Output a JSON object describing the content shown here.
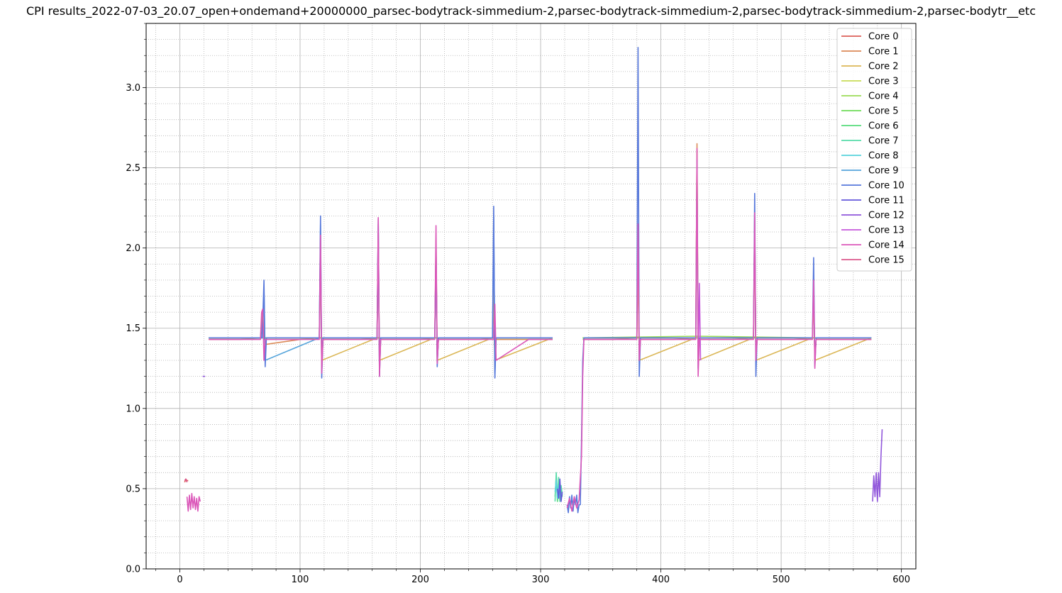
{
  "chart_data": {
    "type": "line",
    "title": "CPI results_2022-07-03_20.07_open+ondemand+20000000_parsec-bodytrack-simmedium-2,parsec-bodytrack-simmedium-2,parsec-bodytrack-simmedium-2,parsec-bodytr__etc",
    "xlabel": "",
    "ylabel": "",
    "xlim": [
      -28,
      612
    ],
    "ylim": [
      0.0,
      3.4
    ],
    "xticks": [
      0,
      100,
      200,
      300,
      400,
      500,
      600
    ],
    "yticks": [
      0.0,
      0.5,
      1.0,
      1.5,
      2.0,
      2.5,
      3.0
    ],
    "xtick_labels": [
      "0",
      "100",
      "200",
      "300",
      "400",
      "500",
      "600"
    ],
    "ytick_labels": [
      "0.0",
      "0.5",
      "1.0",
      "1.5",
      "2.0",
      "2.5",
      "3.0"
    ],
    "grid": "major solid, minor dotted",
    "legend_position": "upper right",
    "series_colors": [
      "#db5f57",
      "#db8a57",
      "#dbb757",
      "#c8db57",
      "#9bdb57",
      "#6edb57",
      "#57db7c",
      "#57dbaa",
      "#57d3db",
      "#57a5db",
      "#5778db",
      "#6457db",
      "#9157db",
      "#c657db",
      "#db57b9",
      "#db578c"
    ],
    "series": [
      {
        "name": "Core 0",
        "segments": [
          {
            "x": [
              4,
              5,
              6,
              7
            ],
            "y": [
              0.54,
              0.56,
              0.55,
              0.55
            ]
          }
        ]
      },
      {
        "name": "Core 1",
        "segments": [
          {
            "x": [
              24,
              50,
              67,
              69,
              70,
              72,
              100,
              116,
              117,
              118,
              119,
              121,
              150,
              164,
              165,
              166,
              167,
              169,
              200,
              212,
              213,
              214,
              215,
              217,
              250,
              260,
              261,
              262,
              263,
              265,
              310
            ],
            "y": [
              1.43,
              1.43,
              1.44,
              1.6,
              1.44,
              1.4,
              1.43,
              1.44,
              2.0,
              1.25,
              1.43,
              1.43,
              1.43,
              1.44,
              2.1,
              1.25,
              1.43,
              1.43,
              1.43,
              1.44,
              2.05,
              1.3,
              1.43,
              1.43,
              1.43,
              1.44,
              1.7,
              1.25,
              1.43,
              1.43,
              1.43
            ]
          },
          {
            "x": [
              335,
              360,
              380,
              381,
              382,
              383,
              385,
              410,
              429,
              430,
              431,
              432,
              434,
              460,
              477,
              478,
              479,
              480,
              482,
              510,
              526,
              527,
              528,
              529,
              531,
              575
            ],
            "y": [
              1.43,
              1.43,
              1.44,
              2.1,
              1.3,
              1.43,
              1.43,
              1.43,
              1.44,
              2.65,
              1.3,
              1.43,
              1.43,
              1.43,
              1.44,
              2.2,
              1.3,
              1.43,
              1.43,
              1.43,
              1.44,
              1.75,
              1.3,
              1.43,
              1.43,
              1.43
            ]
          }
        ]
      },
      {
        "name": "Core 2",
        "segments": [
          {
            "x": [
              24,
              70,
              116,
              117,
              118,
              164,
              165,
              166,
              212,
              213,
              214,
              260,
              261,
              262,
              310
            ],
            "y": [
              1.44,
              1.44,
              1.44,
              1.9,
              1.3,
              1.44,
              2.05,
              1.3,
              1.44,
              2.0,
              1.3,
              1.44,
              1.75,
              1.3,
              1.44
            ]
          },
          {
            "x": [
              335,
              380,
              381,
              382,
              429,
              430,
              431,
              477,
              478,
              479,
              526,
              527,
              528,
              575
            ],
            "y": [
              1.44,
              1.44,
              1.9,
              1.3,
              1.44,
              2.6,
              1.3,
              1.44,
              2.1,
              1.3,
              1.44,
              1.7,
              1.3,
              1.44
            ]
          }
        ]
      },
      {
        "name": "Core 3",
        "segments": [
          {
            "x": [
              24,
              70,
              118,
              166,
              214,
              262,
              310
            ],
            "y": [
              1.44,
              1.44,
              1.44,
              1.44,
              1.44,
              1.44,
              1.44
            ]
          },
          {
            "x": [
              335,
              382,
              430,
              478,
              527,
              575
            ],
            "y": [
              1.44,
              1.44,
              1.44,
              1.44,
              1.44,
              1.44
            ]
          }
        ]
      },
      {
        "name": "Core 4",
        "segments": [
          {
            "x": [
              24,
              118,
              214,
              310
            ],
            "y": [
              1.44,
              1.44,
              1.44,
              1.44
            ]
          },
          {
            "x": [
              335,
              430,
              527,
              575
            ],
            "y": [
              1.44,
              1.45,
              1.44,
              1.44
            ]
          }
        ]
      },
      {
        "name": "Core 5",
        "segments": [
          {
            "x": [
              24,
              166,
              310
            ],
            "y": [
              1.44,
              1.44,
              1.44
            ]
          },
          {
            "x": [
              335,
              478,
              575
            ],
            "y": [
              1.44,
              1.44,
              1.44
            ]
          }
        ]
      },
      {
        "name": "Core 6",
        "segments": [
          {
            "x": [
              312,
              313,
              314,
              315,
              316,
              317,
              318
            ],
            "y": [
              0.45,
              0.58,
              0.42,
              0.55,
              0.43,
              0.5,
              0.45
            ]
          }
        ]
      },
      {
        "name": "Core 7",
        "segments": [
          {
            "x": [
              312,
              313,
              314,
              315,
              316,
              317,
              318
            ],
            "y": [
              0.42,
              0.6,
              0.44,
              0.57,
              0.42,
              0.52,
              0.46
            ]
          }
        ]
      },
      {
        "name": "Core 8",
        "segments": [
          {
            "x": [
              312,
              313,
              314,
              315,
              316
            ],
            "y": [
              0.48,
              0.55,
              0.44,
              0.52,
              0.45
            ]
          }
        ]
      },
      {
        "name": "Core 9",
        "segments": [
          {
            "x": [
              24,
              69,
              70,
              71,
              116,
              117,
              118,
              119,
              164,
              165,
              166,
              167,
              212,
              213,
              214,
              215,
              260,
              261,
              262,
              263,
              310
            ],
            "y": [
              1.44,
              1.44,
              1.75,
              1.3,
              1.44,
              2.15,
              1.22,
              1.44,
              1.44,
              2.15,
              1.22,
              1.44,
              1.44,
              2.0,
              1.28,
              1.44,
              1.44,
              2.2,
              1.22,
              1.44,
              1.44
            ]
          }
        ]
      },
      {
        "name": "Core 10",
        "segments": [
          {
            "x": [
              24,
              40,
              60,
              68,
              69,
              70,
              71,
              72,
              90,
              110,
              116,
              117,
              118,
              119,
              120,
              140,
              160,
              164,
              165,
              166,
              167,
              168,
              190,
              210,
              212,
              213,
              214,
              215,
              216,
              240,
              260,
              261,
              262,
              263,
              264,
              290,
              310
            ],
            "y": [
              1.44,
              1.44,
              1.44,
              1.44,
              1.55,
              1.8,
              1.26,
              1.44,
              1.44,
              1.44,
              1.44,
              2.2,
              1.19,
              1.44,
              1.44,
              1.44,
              1.44,
              1.44,
              2.18,
              1.2,
              1.44,
              1.44,
              1.44,
              1.44,
              1.44,
              2.0,
              1.26,
              1.44,
              1.44,
              1.44,
              1.44,
              2.26,
              1.19,
              1.44,
              1.44,
              1.44,
              1.44
            ]
          },
          {
            "x": [
              322,
              323,
              324,
              325,
              326,
              327,
              328,
              329,
              330,
              331,
              332,
              333,
              334,
              335,
              336
            ],
            "y": [
              0.4,
              0.35,
              0.45,
              0.38,
              0.46,
              0.36,
              0.44,
              0.4,
              0.46,
              0.35,
              0.4,
              0.4,
              0.8,
              1.3,
              1.44
            ]
          },
          {
            "x": [
              336,
              360,
              380,
              381,
              382,
              383,
              384,
              410,
              429,
              430,
              431,
              432,
              433,
              460,
              477,
              478,
              479,
              480,
              481,
              510,
              526,
              527,
              528,
              529,
              530,
              575
            ],
            "y": [
              1.44,
              1.44,
              1.44,
              3.25,
              1.2,
              1.44,
              1.44,
              1.44,
              1.44,
              2.55,
              1.25,
              1.44,
              1.44,
              1.44,
              1.44,
              2.34,
              1.2,
              1.44,
              1.44,
              1.44,
              1.44,
              1.94,
              1.26,
              1.44,
              1.44,
              1.44
            ]
          }
        ]
      },
      {
        "name": "Core 11",
        "segments": [
          {
            "x": [
              314,
              315,
              316,
              317,
              318
            ],
            "y": [
              0.5,
              0.44,
              0.56,
              0.42,
              0.48
            ]
          }
        ]
      },
      {
        "name": "Core 12",
        "segments": [
          {
            "x": [
              19,
              20,
              21
            ],
            "y": [
              1.2,
              1.2,
              1.2
            ]
          },
          {
            "x": [
              576,
              577,
              578,
              579,
              580,
              581,
              582,
              583,
              584
            ],
            "y": [
              0.42,
              0.58,
              0.45,
              0.6,
              0.42,
              0.6,
              0.45,
              0.7,
              0.87
            ]
          }
        ]
      },
      {
        "name": "Core 13",
        "segments": [
          {
            "x": [
              431,
              432,
              433
            ],
            "y": [
              1.3,
              1.78,
              1.3
            ]
          }
        ]
      },
      {
        "name": "Core 14",
        "segments": [
          {
            "x": [
              6,
              7,
              8,
              9,
              10,
              11,
              12,
              13,
              14,
              15,
              16,
              17
            ],
            "y": [
              0.45,
              0.36,
              0.46,
              0.37,
              0.47,
              0.38,
              0.45,
              0.37,
              0.44,
              0.36,
              0.45,
              0.42
            ]
          },
          {
            "x": [
              24,
              40,
              60,
              67,
              68,
              69,
              70,
              71,
              90,
              110,
              116,
              117,
              118,
              119,
              140,
              160,
              164,
              165,
              166,
              167,
              190,
              210,
              212,
              213,
              214,
              215,
              240,
              260,
              261,
              262,
              263,
              290,
              310
            ],
            "y": [
              1.43,
              1.43,
              1.43,
              1.43,
              1.6,
              1.62,
              1.3,
              1.43,
              1.43,
              1.43,
              1.43,
              2.08,
              1.22,
              1.43,
              1.43,
              1.43,
              1.43,
              2.19,
              1.2,
              1.43,
              1.43,
              1.43,
              1.43,
              2.14,
              1.28,
              1.43,
              1.43,
              1.43,
              1.43,
              1.65,
              1.3,
              1.43,
              1.43
            ]
          },
          {
            "x": [
              322,
              324,
              326,
              328,
              330,
              332,
              334,
              335,
              336
            ],
            "y": [
              0.38,
              0.44,
              0.36,
              0.45,
              0.38,
              0.43,
              0.7,
              1.2,
              1.43
            ]
          },
          {
            "x": [
              336,
              360,
              380,
              381,
              382,
              383,
              410,
              429,
              430,
              431,
              432,
              460,
              477,
              478,
              479,
              480,
              510,
              526,
              527,
              528,
              529,
              575
            ],
            "y": [
              1.43,
              1.43,
              1.43,
              2.15,
              1.3,
              1.43,
              1.43,
              1.43,
              2.62,
              1.2,
              1.43,
              1.43,
              1.43,
              2.22,
              1.3,
              1.43,
              1.43,
              1.43,
              1.8,
              1.25,
              1.43,
              1.43
            ]
          }
        ]
      },
      {
        "name": "Core 15",
        "segments": [
          {
            "x": [
              4,
              5,
              6
            ],
            "y": [
              0.55,
              0.56,
              0.54
            ]
          }
        ]
      }
    ]
  }
}
